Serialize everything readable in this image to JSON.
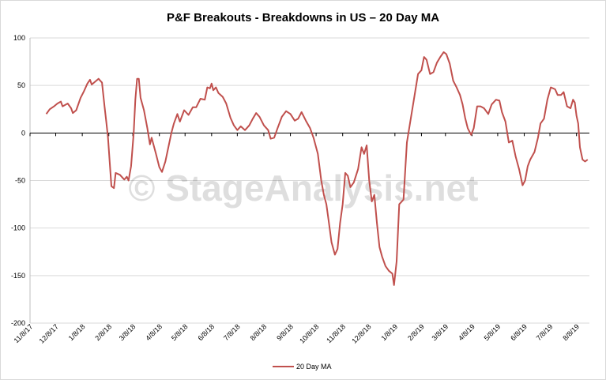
{
  "chart_data": {
    "type": "line",
    "title": "P&F Breakouts - Breakdowns in US – 20 Day MA",
    "watermark": "© StageAnalysis.net",
    "ylim": [
      -200,
      100
    ],
    "yticks": [
      100,
      50,
      0,
      -50,
      -100,
      -150,
      -200
    ],
    "xrange": [
      "2017-11-08",
      "2019-08-12"
    ],
    "xticks": [
      "11/8/17",
      "12/8/17",
      "1/8/18",
      "2/8/18",
      "3/8/18",
      "4/8/18",
      "5/8/18",
      "6/8/18",
      "7/8/18",
      "8/8/18",
      "9/8/18",
      "10/8/18",
      "11/8/18",
      "12/8/18",
      "1/8/19",
      "2/8/19",
      "3/8/19",
      "4/8/19",
      "5/8/19",
      "6/8/19",
      "7/8/19",
      "8/8/19"
    ],
    "legend": "bottom",
    "grid": true,
    "series": [
      {
        "name": "20 Day MA",
        "color": "#c0504d",
        "points": [
          [
            "2017-11-27",
            20
          ],
          [
            "2017-12-01",
            25
          ],
          [
            "2017-12-06",
            28
          ],
          [
            "2017-12-10",
            31
          ],
          [
            "2017-12-14",
            33
          ],
          [
            "2017-12-16",
            28
          ],
          [
            "2017-12-22",
            31
          ],
          [
            "2017-12-26",
            26
          ],
          [
            "2017-12-28",
            21
          ],
          [
            "2018-01-01",
            24
          ],
          [
            "2018-01-06",
            37
          ],
          [
            "2018-01-10",
            44
          ],
          [
            "2018-01-14",
            52
          ],
          [
            "2018-01-17",
            56
          ],
          [
            "2018-01-19",
            51
          ],
          [
            "2018-01-23",
            54
          ],
          [
            "2018-01-27",
            57
          ],
          [
            "2018-01-31",
            53
          ],
          [
            "2018-02-03",
            28
          ],
          [
            "2018-02-05",
            12
          ],
          [
            "2018-02-07",
            -5
          ],
          [
            "2018-02-09",
            -30
          ],
          [
            "2018-02-11",
            -56
          ],
          [
            "2018-02-14",
            -58
          ],
          [
            "2018-02-16",
            -42
          ],
          [
            "2018-02-21",
            -44
          ],
          [
            "2018-02-26",
            -49
          ],
          [
            "2018-03-01",
            -46
          ],
          [
            "2018-03-03",
            -50
          ],
          [
            "2018-03-06",
            -35
          ],
          [
            "2018-03-09",
            0
          ],
          [
            "2018-03-11",
            35
          ],
          [
            "2018-03-13",
            57
          ],
          [
            "2018-03-15",
            57
          ],
          [
            "2018-03-17",
            37
          ],
          [
            "2018-03-21",
            24
          ],
          [
            "2018-03-25",
            5
          ],
          [
            "2018-03-28",
            -12
          ],
          [
            "2018-03-30",
            -5
          ],
          [
            "2018-04-04",
            -22
          ],
          [
            "2018-04-08",
            -36
          ],
          [
            "2018-04-11",
            -41
          ],
          [
            "2018-04-15",
            -30
          ],
          [
            "2018-04-19",
            -13
          ],
          [
            "2018-04-22",
            0
          ],
          [
            "2018-04-25",
            10
          ],
          [
            "2018-04-29",
            20
          ],
          [
            "2018-05-02",
            12
          ],
          [
            "2018-05-07",
            24
          ],
          [
            "2018-05-12",
            19
          ],
          [
            "2018-05-17",
            27
          ],
          [
            "2018-05-21",
            27
          ],
          [
            "2018-05-26",
            36
          ],
          [
            "2018-05-31",
            35
          ],
          [
            "2018-06-03",
            48
          ],
          [
            "2018-06-06",
            47
          ],
          [
            "2018-06-08",
            52
          ],
          [
            "2018-06-10",
            45
          ],
          [
            "2018-06-13",
            48
          ],
          [
            "2018-06-16",
            42
          ],
          [
            "2018-06-21",
            38
          ],
          [
            "2018-06-25",
            31
          ],
          [
            "2018-06-30",
            16
          ],
          [
            "2018-07-04",
            8
          ],
          [
            "2018-07-08",
            3
          ],
          [
            "2018-07-12",
            7
          ],
          [
            "2018-07-17",
            3
          ],
          [
            "2018-07-22",
            8
          ],
          [
            "2018-07-26",
            15
          ],
          [
            "2018-07-30",
            21
          ],
          [
            "2018-08-03",
            17
          ],
          [
            "2018-08-08",
            8
          ],
          [
            "2018-08-13",
            3
          ],
          [
            "2018-08-16",
            -6
          ],
          [
            "2018-08-20",
            -5
          ],
          [
            "2018-08-24",
            5
          ],
          [
            "2018-08-29",
            17
          ],
          [
            "2018-09-03",
            23
          ],
          [
            "2018-09-08",
            20
          ],
          [
            "2018-09-13",
            13
          ],
          [
            "2018-09-17",
            15
          ],
          [
            "2018-09-21",
            22
          ],
          [
            "2018-09-26",
            13
          ],
          [
            "2018-10-01",
            5
          ],
          [
            "2018-10-05",
            -5
          ],
          [
            "2018-10-10",
            -22
          ],
          [
            "2018-10-14",
            -50
          ],
          [
            "2018-10-17",
            -65
          ],
          [
            "2018-10-20",
            -75
          ],
          [
            "2018-10-23",
            -95
          ],
          [
            "2018-10-26",
            -115
          ],
          [
            "2018-10-30",
            -128
          ],
          [
            "2018-11-02",
            -122
          ],
          [
            "2018-11-05",
            -95
          ],
          [
            "2018-11-08",
            -75
          ],
          [
            "2018-11-11",
            -42
          ],
          [
            "2018-11-14",
            -45
          ],
          [
            "2018-11-17",
            -57
          ],
          [
            "2018-11-21",
            -52
          ],
          [
            "2018-11-26",
            -38
          ],
          [
            "2018-11-30",
            -15
          ],
          [
            "2018-12-03",
            -22
          ],
          [
            "2018-12-06",
            -13
          ],
          [
            "2018-12-09",
            -50
          ],
          [
            "2018-12-12",
            -72
          ],
          [
            "2018-12-15",
            -65
          ],
          [
            "2018-12-18",
            -95
          ],
          [
            "2018-12-21",
            -120
          ],
          [
            "2018-12-24",
            -130
          ],
          [
            "2018-12-28",
            -140
          ],
          [
            "2019-01-01",
            -145
          ],
          [
            "2019-01-05",
            -148
          ],
          [
            "2019-01-07",
            -160
          ],
          [
            "2019-01-10",
            -135
          ],
          [
            "2019-01-13",
            -75
          ],
          [
            "2019-01-18",
            -70
          ],
          [
            "2019-01-22",
            -10
          ],
          [
            "2019-01-26",
            12
          ],
          [
            "2019-01-31",
            40
          ],
          [
            "2019-02-04",
            62
          ],
          [
            "2019-02-08",
            66
          ],
          [
            "2019-02-11",
            80
          ],
          [
            "2019-02-14",
            77
          ],
          [
            "2019-02-18",
            62
          ],
          [
            "2019-02-22",
            64
          ],
          [
            "2019-02-26",
            74
          ],
          [
            "2019-03-02",
            80
          ],
          [
            "2019-03-06",
            85
          ],
          [
            "2019-03-09",
            83
          ],
          [
            "2019-03-13",
            73
          ],
          [
            "2019-03-17",
            55
          ],
          [
            "2019-03-21",
            48
          ],
          [
            "2019-03-25",
            40
          ],
          [
            "2019-03-28",
            30
          ],
          [
            "2019-03-31",
            16
          ],
          [
            "2019-04-03",
            5
          ],
          [
            "2019-04-07",
            -2
          ],
          [
            "2019-04-10",
            5
          ],
          [
            "2019-04-14",
            28
          ],
          [
            "2019-04-18",
            28
          ],
          [
            "2019-04-22",
            26
          ],
          [
            "2019-04-27",
            20
          ],
          [
            "2019-05-01",
            30
          ],
          [
            "2019-05-06",
            35
          ],
          [
            "2019-05-10",
            34
          ],
          [
            "2019-05-13",
            22
          ],
          [
            "2019-05-17",
            12
          ],
          [
            "2019-05-21",
            -10
          ],
          [
            "2019-05-25",
            -8
          ],
          [
            "2019-05-29",
            -25
          ],
          [
            "2019-06-02",
            -38
          ],
          [
            "2019-06-06",
            -55
          ],
          [
            "2019-06-09",
            -50
          ],
          [
            "2019-06-12",
            -35
          ],
          [
            "2019-06-15",
            -28
          ],
          [
            "2019-06-20",
            -20
          ],
          [
            "2019-06-24",
            -5
          ],
          [
            "2019-06-27",
            10
          ],
          [
            "2019-07-01",
            15
          ],
          [
            "2019-07-05",
            35
          ],
          [
            "2019-07-09",
            48
          ],
          [
            "2019-07-14",
            46
          ],
          [
            "2019-07-17",
            40
          ],
          [
            "2019-07-21",
            40
          ],
          [
            "2019-07-24",
            43
          ],
          [
            "2019-07-28",
            28
          ],
          [
            "2019-08-01",
            26
          ],
          [
            "2019-08-04",
            35
          ],
          [
            "2019-08-06",
            32
          ],
          [
            "2019-08-08",
            18
          ],
          [
            "2019-08-10",
            10
          ],
          [
            "2019-08-12",
            -15
          ],
          [
            "2019-08-15",
            -28
          ],
          [
            "2019-08-18",
            -30
          ],
          [
            "2019-08-21",
            -28
          ]
        ]
      }
    ]
  }
}
